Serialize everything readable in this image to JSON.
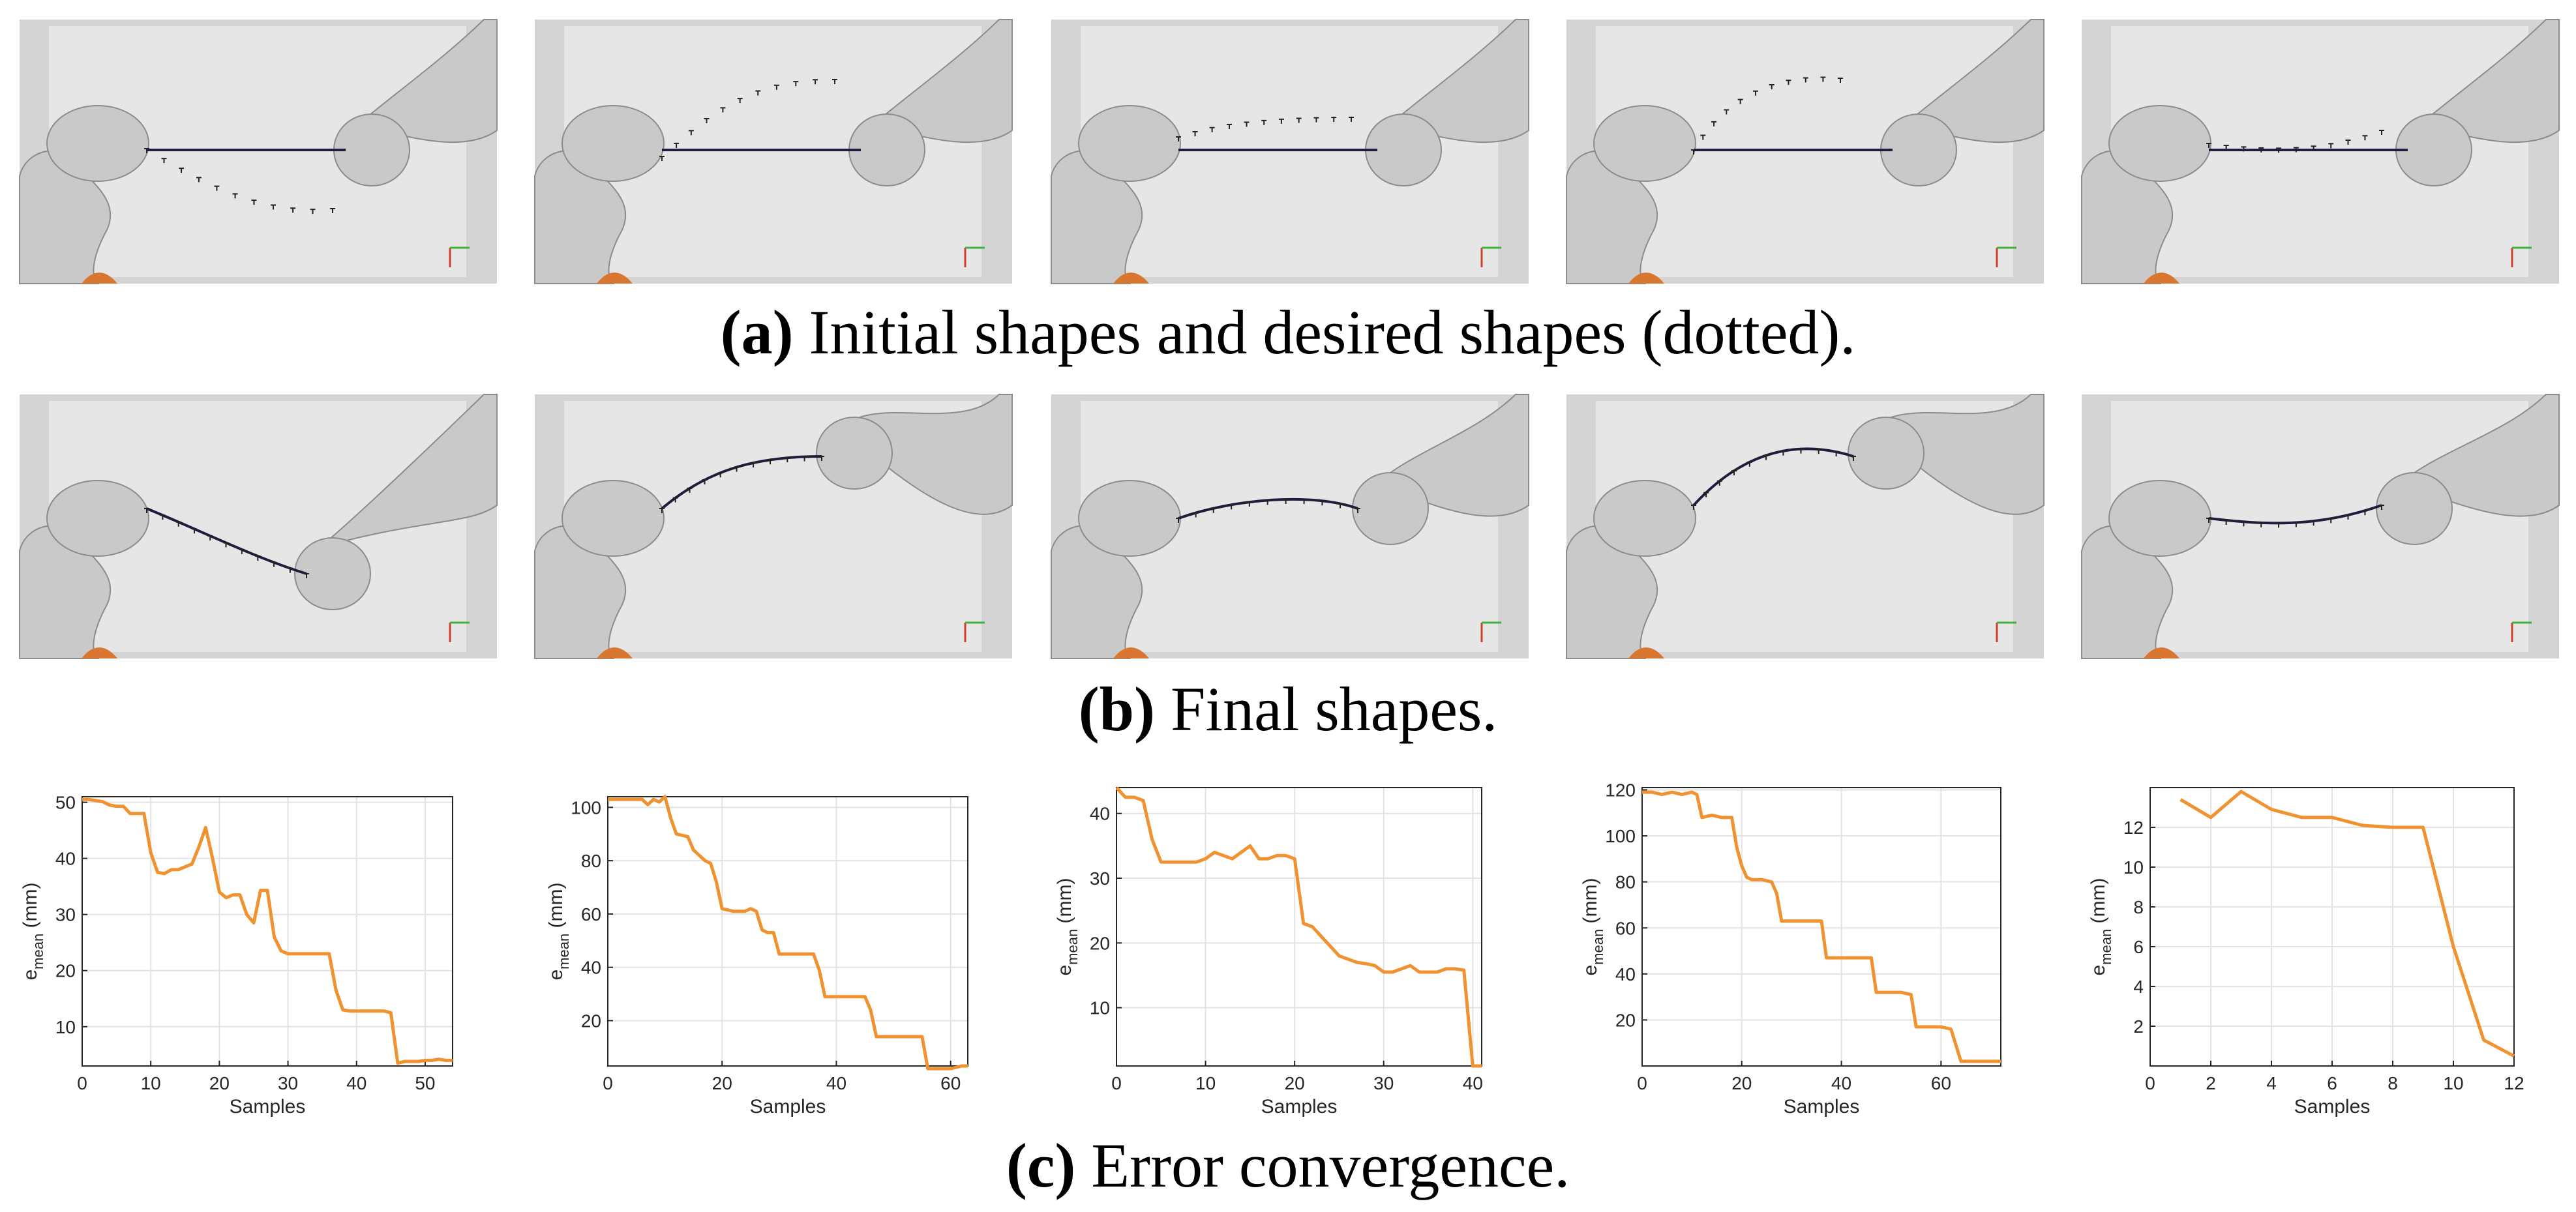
{
  "captions": {
    "a_letter": "(a)",
    "a_text": " Initial shapes and desired shapes (dotted).",
    "b_letter": "(b)",
    "b_text": " Final shapes.",
    "c_letter": "(c)",
    "c_text": " Error convergence."
  },
  "colors": {
    "series": "#f0922f",
    "robot": "#c9c9c9",
    "robot_edge": "#8c8c8c",
    "robot_accent": "#d9762f",
    "scene_bg": "#e6e6e6",
    "rope": "#1e1e3c",
    "grid": "#e3e3e3"
  },
  "icons": {
    "robot_arm": "robot-arm-icon",
    "gripper": "gripper-icon",
    "axis_gizmo": "axis-gizmo-icon"
  },
  "render_rows": [
    {
      "row": "a",
      "panels": [
        {
          "rope": "straight",
          "desired": "lower-arc"
        },
        {
          "rope": "straight",
          "desired": "upper-s"
        },
        {
          "rope": "straight",
          "desired": "upper-flat"
        },
        {
          "rope": "straight",
          "desired": "upper-arc"
        },
        {
          "rope": "straight",
          "desired": "slight-wave"
        }
      ]
    },
    {
      "row": "b",
      "panels": [
        {
          "rope": "diagonal-down",
          "desired": "match"
        },
        {
          "rope": "rising-curve",
          "desired": "match"
        },
        {
          "rope": "gentle-arc",
          "desired": "match"
        },
        {
          "rope": "steep-arc",
          "desired": "match"
        },
        {
          "rope": "slight-wave",
          "desired": "match"
        }
      ]
    }
  ],
  "chart_data": [
    {
      "type": "line",
      "xlabel": "Samples",
      "ylabel": "e_mean (mm)",
      "ylabel_base": "e",
      "ylabel_sub": "mean",
      "ylabel_unit": " (mm)",
      "xlim": [
        0,
        54
      ],
      "ylim": [
        3,
        51
      ],
      "xticks": [
        0,
        10,
        20,
        30,
        40,
        50
      ],
      "yticks": [
        10,
        20,
        30,
        40,
        50
      ],
      "x": [
        0,
        1,
        2,
        3,
        4,
        5,
        6,
        7,
        8,
        9,
        10,
        11,
        12,
        13,
        14,
        15,
        16,
        17,
        18,
        19,
        20,
        21,
        22,
        23,
        24,
        25,
        26,
        27,
        28,
        29,
        30,
        31,
        32,
        33,
        34,
        35,
        36,
        37,
        38,
        39,
        40,
        41,
        42,
        43,
        44,
        45,
        46,
        47,
        48,
        49,
        50,
        51,
        52,
        53,
        54
      ],
      "values": [
        50.5,
        50.5,
        50.3,
        50.1,
        49.5,
        49.3,
        49.3,
        48.0,
        48.0,
        48.0,
        41.0,
        37.5,
        37.3,
        38.0,
        38.0,
        38.5,
        39.0,
        42.0,
        45.5,
        40.0,
        34.0,
        33.0,
        33.5,
        33.5,
        30.0,
        28.5,
        34.3,
        34.3,
        26.0,
        23.5,
        23.0,
        23.0,
        23.0,
        23.0,
        23.0,
        23.0,
        23.0,
        16.5,
        13.0,
        12.8,
        12.8,
        12.8,
        12.8,
        12.8,
        12.8,
        12.5,
        3.5,
        3.8,
        3.8,
        3.8,
        4.0,
        4.0,
        4.2,
        4.0,
        4.0
      ]
    },
    {
      "type": "line",
      "xlabel": "Samples",
      "ylabel": "e_mean (mm)",
      "ylabel_base": "e",
      "ylabel_sub": "mean",
      "ylabel_unit": " (mm)",
      "xlim": [
        0,
        63
      ],
      "ylim": [
        3,
        104
      ],
      "xticks": [
        0,
        20,
        40,
        60
      ],
      "yticks": [
        20,
        40,
        60,
        80,
        100
      ],
      "x": [
        0,
        2,
        4,
        6,
        7,
        8,
        9,
        10,
        11,
        12,
        14,
        15,
        17,
        18,
        19,
        20,
        22,
        24,
        25,
        26,
        27,
        28,
        29,
        30,
        32,
        34,
        35,
        36,
        37,
        38,
        39,
        40,
        42,
        44,
        45,
        46,
        47,
        48,
        50,
        52,
        54,
        55,
        56,
        58,
        60,
        62,
        63
      ],
      "values": [
        103,
        103,
        103,
        103,
        101,
        103,
        102,
        104,
        96,
        90,
        89,
        84,
        80,
        79,
        72,
        62,
        61,
        61,
        62,
        61,
        54,
        53,
        53,
        45,
        45,
        45,
        45,
        45,
        39,
        29,
        29,
        29,
        29,
        29,
        29,
        24,
        14,
        14,
        14,
        14,
        14,
        14,
        2,
        2,
        2,
        3,
        3
      ]
    },
    {
      "type": "line",
      "xlabel": "Samples",
      "ylabel": "e_mean (mm)",
      "ylabel_base": "e",
      "ylabel_sub": "mean",
      "ylabel_unit": " (mm)",
      "xlim": [
        0,
        41
      ],
      "ylim": [
        1,
        44
      ],
      "xticks": [
        0,
        10,
        20,
        30,
        40
      ],
      "yticks": [
        10,
        20,
        30,
        40
      ],
      "x": [
        0,
        1,
        2,
        3,
        4,
        5,
        6,
        7,
        8,
        9,
        10,
        11,
        12,
        13,
        14,
        15,
        16,
        17,
        18,
        19,
        20,
        21,
        22,
        23,
        24,
        25,
        26,
        27,
        28,
        29,
        30,
        31,
        32,
        33,
        34,
        35,
        36,
        37,
        38,
        39,
        40,
        41
      ],
      "values": [
        44,
        42.5,
        42.5,
        42,
        36,
        32.5,
        32.5,
        32.5,
        32.5,
        32.5,
        33,
        34,
        33.5,
        33,
        34,
        35,
        33,
        33,
        33.5,
        33.5,
        33,
        23,
        22.5,
        21,
        19.5,
        18,
        17.5,
        17,
        16.8,
        16.5,
        15.5,
        15.5,
        16,
        16.5,
        15.5,
        15.5,
        15.5,
        16,
        16,
        15.8,
        1,
        1
      ]
    },
    {
      "type": "line",
      "xlabel": "Samples",
      "ylabel": "e_mean (mm)",
      "ylabel_base": "e",
      "ylabel_sub": "mean",
      "ylabel_unit": " (mm)",
      "xlim": [
        0,
        72
      ],
      "ylim": [
        0,
        121
      ],
      "xticks": [
        0,
        20,
        40,
        60
      ],
      "yticks": [
        20,
        40,
        60,
        80,
        100,
        120
      ],
      "x": [
        0,
        2,
        4,
        6,
        8,
        10,
        11,
        12,
        14,
        16,
        18,
        19,
        20,
        21,
        22,
        24,
        26,
        27,
        28,
        29,
        30,
        32,
        34,
        36,
        37,
        38,
        40,
        42,
        44,
        46,
        47,
        48,
        50,
        52,
        54,
        55,
        56,
        58,
        60,
        62,
        64,
        65,
        66,
        68,
        70,
        72
      ],
      "values": [
        119,
        119,
        118,
        119,
        118,
        119,
        118,
        108,
        109,
        108,
        108,
        95,
        87,
        82,
        81,
        81,
        80,
        75,
        63,
        63,
        63,
        63,
        63,
        63,
        47,
        47,
        47,
        47,
        47,
        47,
        32,
        32,
        32,
        32,
        31,
        17,
        17,
        17,
        17,
        16,
        2,
        2,
        2,
        2,
        2,
        2
      ]
    },
    {
      "type": "line",
      "xlabel": "Samples",
      "ylabel": "e_mean (mm)",
      "ylabel_base": "e",
      "ylabel_sub": "mean",
      "ylabel_unit": " (mm)",
      "xlim": [
        0,
        12
      ],
      "ylim": [
        0,
        14
      ],
      "xticks": [
        0,
        2,
        4,
        6,
        8,
        10,
        12
      ],
      "yticks": [
        2,
        4,
        6,
        8,
        10,
        12
      ],
      "x": [
        1,
        2,
        3,
        4,
        5,
        6,
        7,
        8,
        9,
        10,
        11,
        12
      ],
      "values": [
        13.4,
        12.5,
        13.8,
        12.9,
        12.5,
        12.5,
        12.1,
        12.0,
        12.0,
        6.0,
        1.3,
        0.5
      ]
    }
  ]
}
